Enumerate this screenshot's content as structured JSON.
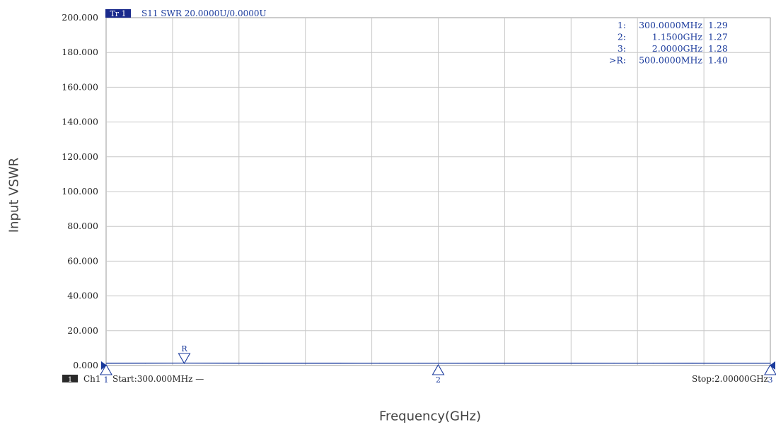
{
  "chart_data": {
    "type": "line",
    "trace_label": "Tr 1",
    "trace_info": "S11 SWR 20.0000U/0.0000U",
    "xlabel": "Frequency(GHz)",
    "ylabel": "Input VSWR",
    "xlim": [
      0.3,
      2.0
    ],
    "ylim": [
      0,
      200
    ],
    "y_ticks": [
      0,
      20,
      40,
      60,
      80,
      100,
      120,
      140,
      160,
      180,
      200
    ],
    "y_tick_labels": [
      "0.000",
      "20.000",
      "40.000",
      "60.000",
      "80.000",
      "100.000",
      "120.000",
      "140.000",
      "160.000",
      "180.000",
      "200.000"
    ],
    "x_grid_divisions": 10,
    "grid": true,
    "channel_badge": "1",
    "channel_label": "Ch1",
    "start_label": "Start:300.000MHz —",
    "stop_label": "Stop:2.00000GHz",
    "series": [
      {
        "x": [
          0.3,
          0.4,
          0.5,
          0.6,
          0.7,
          0.8,
          0.9,
          1.0,
          1.1,
          1.15,
          1.2,
          1.3,
          1.4,
          1.5,
          1.6,
          1.7,
          1.8,
          1.9,
          2.0
        ],
        "values": [
          1.29,
          1.33,
          1.4,
          1.36,
          1.32,
          1.3,
          1.29,
          1.28,
          1.27,
          1.27,
          1.28,
          1.29,
          1.3,
          1.29,
          1.28,
          1.28,
          1.29,
          1.28,
          1.28
        ]
      }
    ],
    "markers": [
      {
        "id": "1",
        "symbol": "1",
        "x": 0.3,
        "freq": "300.0000MHz",
        "value": "1.29",
        "label": "1:"
      },
      {
        "id": "2",
        "symbol": "2",
        "x": 1.15,
        "freq": "1.1500GHz",
        "value": "1.27",
        "label": "2:"
      },
      {
        "id": "3",
        "symbol": "3",
        "x": 2.0,
        "freq": "2.0000GHz",
        "value": "1.28",
        "label": "3:"
      },
      {
        "id": "R",
        "symbol": "R",
        "x": 0.5,
        "freq": "500.0000MHz",
        "value": "1.40",
        "label": ">R:"
      }
    ],
    "colors": {
      "trace": "#1a3a9c",
      "grid": "#c8c8c8",
      "axis_text": "#222222",
      "marker": "#1a3a9c",
      "badge_bg": "#1a2a8c",
      "channel_badge_bg": "#2a2a2a"
    }
  }
}
